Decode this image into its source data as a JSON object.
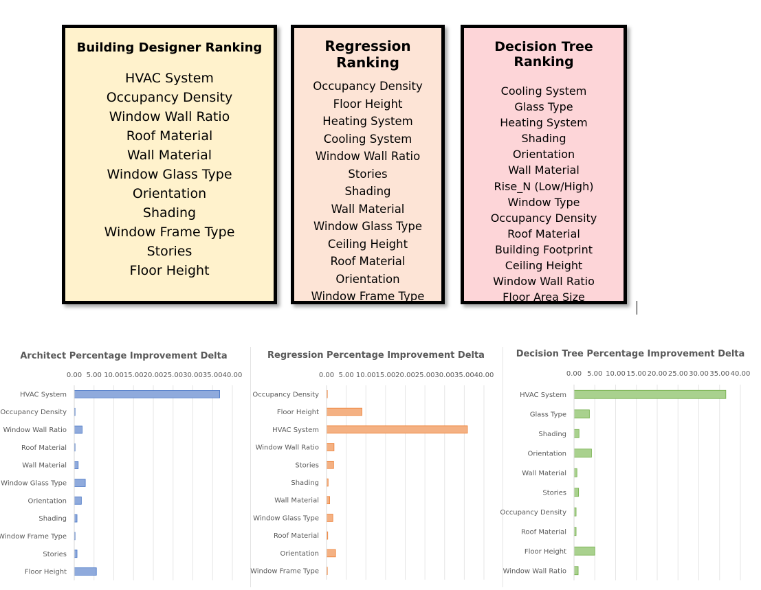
{
  "rankings": {
    "designer": {
      "title": "Building Designer Ranking",
      "items": [
        "HVAC System",
        "Occupancy Density",
        "Window Wall Ratio",
        "Roof Material",
        "Wall Material",
        "Window Glass Type",
        "Orientation",
        "Shading",
        "Window Frame Type",
        "Stories",
        "Floor Height"
      ]
    },
    "regression": {
      "title": "Regression Ranking",
      "items": [
        "Occupancy Density",
        "Floor Height",
        "Heating System",
        "Cooling System",
        "Window Wall Ratio",
        "Stories",
        "Shading",
        "Wall Material",
        "Window Glass Type",
        "Ceiling Height",
        "Roof Material",
        "Orientation",
        "Window Frame Type"
      ]
    },
    "tree": {
      "title": "Decision Tree Ranking",
      "items": [
        "Cooling System",
        "Glass Type",
        "Heating System",
        "Shading",
        "Orientation",
        "Wall Material",
        "Rise_N (Low/High)",
        "Window Type",
        "Occupancy Density",
        "Roof Material",
        "Building Footprint",
        "Ceiling Height",
        "Window Wall Ratio",
        "Floor Area Size"
      ]
    }
  },
  "colors": {
    "designer_bg": "#fff2cc",
    "regression_bg": "#fde4d6",
    "tree_bg": "#fdd5d8",
    "blue": "#8faadc",
    "orange": "#f4b183",
    "green": "#a9d18e"
  },
  "chart_data": [
    {
      "type": "bar",
      "orientation": "horizontal",
      "title": "Architect Percentage Improvement Delta",
      "categories": [
        "HVAC System",
        "Occupancy Density",
        "Window Wall Ratio",
        "Roof Material",
        "Wall Material",
        "Window Glass Type",
        "Orientation",
        "Shading",
        "Window Frame Type",
        "Stories",
        "Floor Height"
      ],
      "values": [
        36.8,
        0.2,
        2.0,
        0.2,
        1.0,
        2.8,
        1.8,
        0.7,
        0.2,
        0.7,
        5.6
      ],
      "xlim": [
        0,
        40
      ],
      "xticks": [
        "0.00",
        "5.00",
        "10.00",
        "15.00",
        "20.00",
        "25.00",
        "30.00",
        "35.00",
        "40.00"
      ],
      "xaxis_position": "top",
      "grid": true,
      "color": "#8faadc",
      "stroke": "#4472c4"
    },
    {
      "type": "bar",
      "orientation": "horizontal",
      "title": "Regression Percentage Improvement Delta",
      "categories": [
        "Occupancy Density",
        "Floor Height",
        "HVAC System",
        "Window Wall Ratio",
        "Stories",
        "Shading",
        "Wall Material",
        "Window Glass Type",
        "Roof Material",
        "Orientation",
        "Window Frame Type"
      ],
      "values": [
        0.2,
        9.0,
        35.8,
        1.9,
        1.8,
        0.4,
        0.8,
        1.6,
        0.3,
        2.3,
        0.2
      ],
      "xlim": [
        0,
        40
      ],
      "xticks": [
        "0.00",
        "5.00",
        "10.00",
        "15.00",
        "20.00",
        "25.00",
        "30.00",
        "35.00",
        "40.00"
      ],
      "xaxis_position": "top",
      "grid": true,
      "color": "#f4b183",
      "stroke": "#ed7d31"
    },
    {
      "type": "bar",
      "orientation": "horizontal",
      "title": "Decision Tree Percentage Improvement Delta",
      "categories": [
        "HVAC System",
        "Glass Type",
        "Shading",
        "Orientation",
        "Wall Material",
        "Stories",
        "Occupancy Density",
        "Roof Material",
        "Floor Height",
        "Window Wall Ratio"
      ],
      "values": [
        36.5,
        3.7,
        1.2,
        4.2,
        0.7,
        1.1,
        0.5,
        0.5,
        5.0,
        1.0
      ],
      "xlim": [
        0,
        40
      ],
      "xticks": [
        "0.00",
        "5.00",
        "10.00",
        "15.00",
        "20.00",
        "25.00",
        "30.00",
        "35.00",
        "40.00"
      ],
      "xaxis_position": "top",
      "grid": true,
      "color": "#a9d18e",
      "stroke": "#70ad47"
    }
  ]
}
